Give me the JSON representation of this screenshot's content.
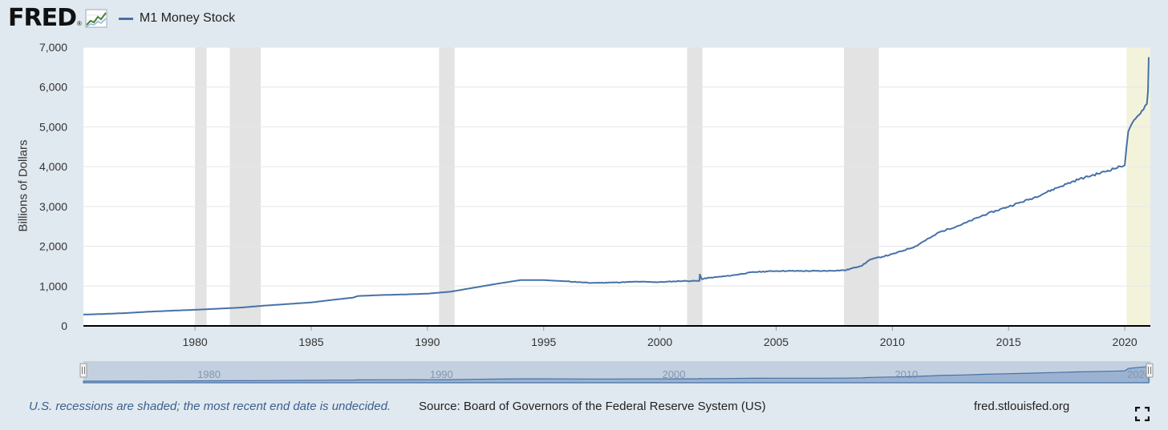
{
  "header": {
    "logo_text": "FRED",
    "logo_reg": "®",
    "legend_label": "M1 Money Stock"
  },
  "colors": {
    "line": "#4572a7",
    "recession": "#e3e3e3",
    "undecided_recession": "#f3f3dc",
    "background": "#e1e9f0"
  },
  "footer": {
    "note": "U.S. recessions are shaded; the most recent end date is undecided.",
    "source": "Source: Board of Governors of the Federal Reserve System (US)",
    "url": "fred.stlouisfed.org",
    "fullscreen_icon": "fullscreen-icon"
  },
  "chart_data": {
    "type": "line",
    "title": "M1 Money Stock",
    "xlabel": "",
    "ylabel": "Billions of Dollars",
    "xlim": [
      1975.2,
      2021.1
    ],
    "ylim": [
      0,
      7000
    ],
    "yticks": [
      0,
      1000,
      2000,
      3000,
      4000,
      5000,
      6000,
      7000
    ],
    "ytick_labels": [
      "0",
      "1,000",
      "2,000",
      "3,000",
      "4,000",
      "5,000",
      "6,000",
      "7,000"
    ],
    "xticks": [
      1980,
      1985,
      1990,
      1995,
      2000,
      2005,
      2010,
      2015,
      2020
    ],
    "xtick_labels": [
      "1980",
      "1985",
      "1990",
      "1995",
      "2000",
      "2005",
      "2010",
      "2015",
      "2020"
    ],
    "grid": true,
    "recessions": [
      {
        "start": 1980.0,
        "end": 1980.5
      },
      {
        "start": 1981.5,
        "end": 1982.83
      },
      {
        "start": 1990.5,
        "end": 1991.17
      },
      {
        "start": 2001.17,
        "end": 2001.83
      },
      {
        "start": 2007.92,
        "end": 2009.42
      }
    ],
    "undecided_recession": {
      "start": 2020.08,
      "end": 2021.1
    },
    "series": [
      {
        "name": "M1 Money Stock",
        "x": [
          1975.2,
          1976,
          1977,
          1978,
          1979,
          1980,
          1981,
          1982,
          1983,
          1984,
          1985,
          1986,
          1986.8,
          1987,
          1988,
          1989,
          1990,
          1991,
          1992,
          1993,
          1994,
          1995,
          1996,
          1997,
          1998,
          1999,
          2000,
          2001,
          2001.7,
          2001.72,
          2001.8,
          2002,
          2003,
          2004,
          2005,
          2006,
          2007,
          2008,
          2008.7,
          2008.9,
          2009,
          2010,
          2011,
          2011.5,
          2011.7,
          2012,
          2013,
          2014,
          2015,
          2016,
          2017,
          2018,
          2019,
          2019.8,
          2020,
          2020.15,
          2020.25,
          2020.4,
          2020.6,
          2020.8,
          2020.95,
          2021.0,
          2021.03
        ],
        "values": [
          285,
          298,
          322,
          356,
          382,
          405,
          432,
          462,
          510,
          550,
          590,
          660,
          710,
          750,
          775,
          790,
          810,
          860,
          960,
          1060,
          1150,
          1150,
          1120,
          1080,
          1090,
          1110,
          1100,
          1130,
          1130,
          1300,
          1170,
          1200,
          1260,
          1350,
          1380,
          1380,
          1380,
          1400,
          1520,
          1600,
          1660,
          1800,
          2000,
          2180,
          2230,
          2350,
          2550,
          2800,
          3000,
          3200,
          3450,
          3680,
          3850,
          4000,
          4050,
          4900,
          5000,
          5150,
          5300,
          5450,
          5600,
          5900,
          6750
        ]
      }
    ]
  },
  "navigator": {
    "labels": [
      "1980",
      "1990",
      "2000",
      "2010",
      "2020"
    ]
  }
}
